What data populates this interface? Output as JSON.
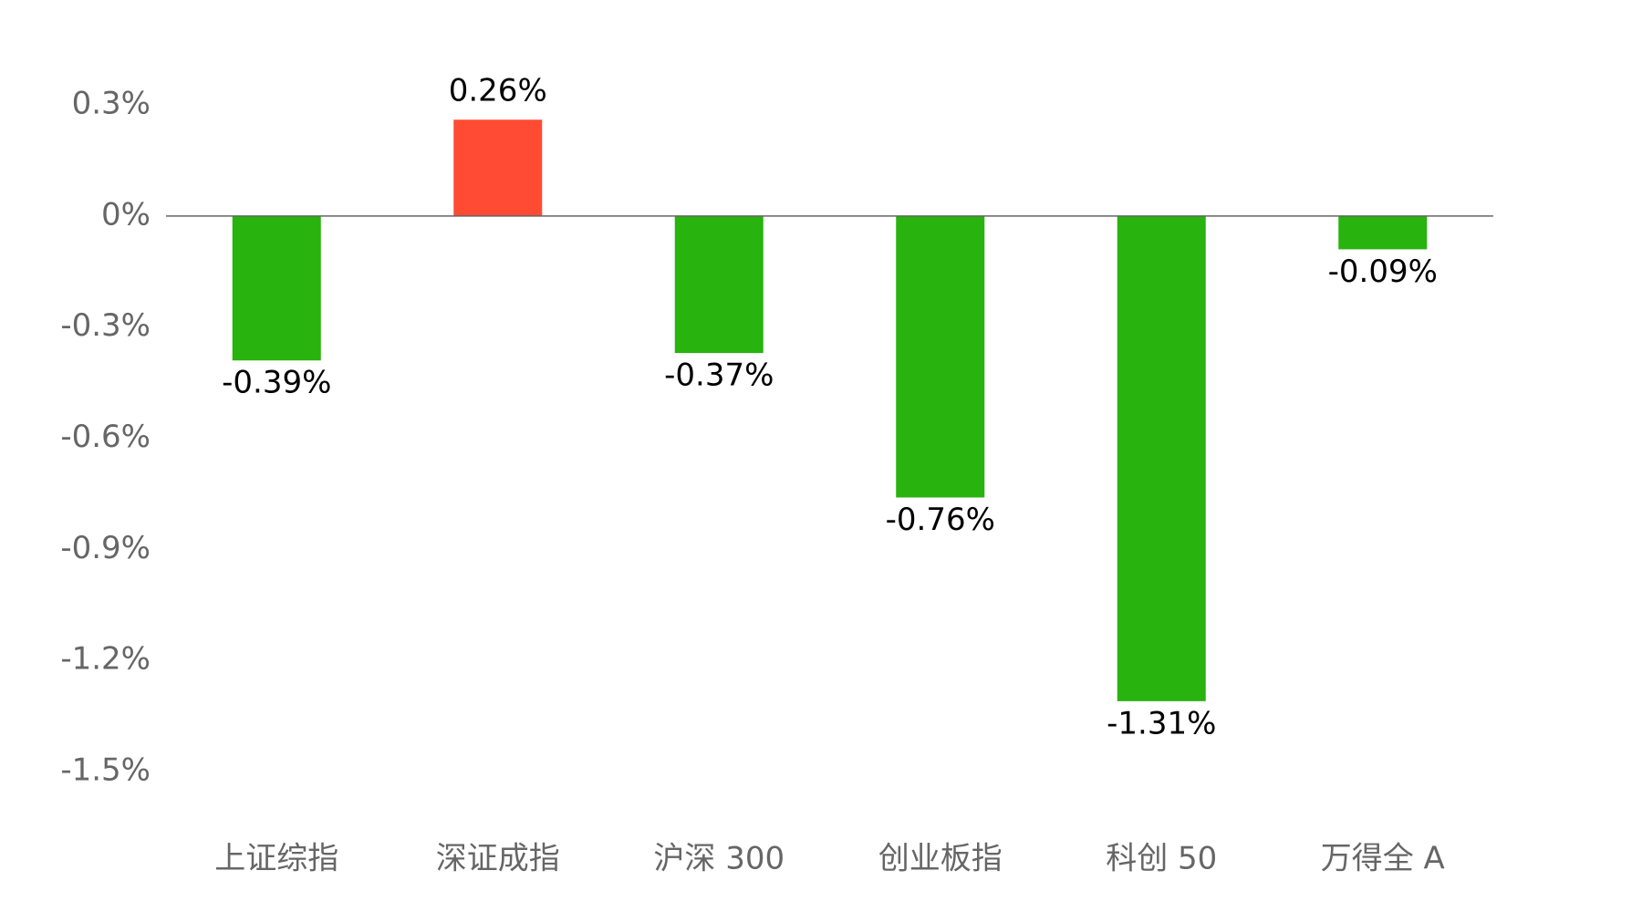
{
  "chart_data": {
    "type": "bar",
    "categories": [
      "上证综指",
      "深证成指",
      "沪深 300",
      "创业板指",
      "科创 50",
      "万得全 A"
    ],
    "values": [
      -0.39,
      0.26,
      -0.37,
      -0.76,
      -1.31,
      -0.09
    ],
    "value_labels": [
      "-0.39%",
      "0.26%",
      "-0.37%",
      "-0.76%",
      "-1.31%",
      "-0.09%"
    ],
    "colors": [
      "#28b30e",
      "#ff4b33",
      "#28b30e",
      "#28b30e",
      "#28b30e",
      "#28b30e"
    ],
    "ylim": [
      -1.5,
      0.3
    ],
    "yticks": [
      {
        "value": 0.3,
        "label": "0.3%"
      },
      {
        "value": 0,
        "label": "0%"
      },
      {
        "value": -0.3,
        "label": "-0.3%"
      },
      {
        "value": -0.6,
        "label": "-0.6%"
      },
      {
        "value": -0.9,
        "label": "-0.9%"
      },
      {
        "value": -1.2,
        "label": "-1.2%"
      },
      {
        "value": -1.5,
        "label": "-1.5%"
      }
    ],
    "grid": false
  }
}
